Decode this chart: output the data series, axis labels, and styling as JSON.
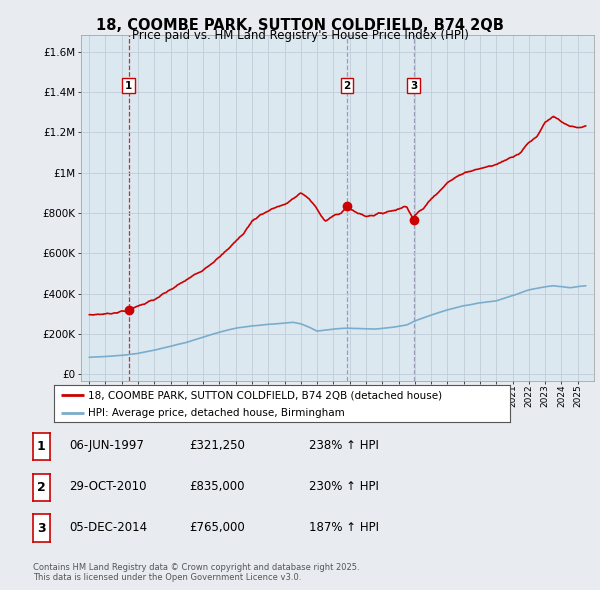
{
  "title_line1": "18, COOMBE PARK, SUTTON COLDFIELD, B74 2QB",
  "title_line2": "Price paid vs. HM Land Registry's House Price Index (HPI)",
  "red_label": "18, COOMBE PARK, SUTTON COLDFIELD, B74 2QB (detached house)",
  "blue_label": "HPI: Average price, detached house, Birmingham",
  "legend_entries": [
    {
      "num": "1",
      "date": "06-JUN-1997",
      "price": "£321,250",
      "change": "238% ↑ HPI"
    },
    {
      "num": "2",
      "date": "29-OCT-2010",
      "price": "£835,000",
      "change": "230% ↑ HPI"
    },
    {
      "num": "3",
      "date": "05-DEC-2014",
      "price": "£765,000",
      "change": "187% ↑ HPI"
    }
  ],
  "footnote": "Contains HM Land Registry data © Crown copyright and database right 2025.\nThis data is licensed under the Open Government Licence v3.0.",
  "yticks": [
    0,
    200000,
    400000,
    600000,
    800000,
    1000000,
    1200000,
    1400000,
    1600000
  ],
  "ytick_labels": [
    "£0",
    "£200K",
    "£400K",
    "£600K",
    "£800K",
    "£1M",
    "£1.2M",
    "£1.4M",
    "£1.6M"
  ],
  "sale_dates_decimal": [
    1997.43,
    2010.83,
    2014.92
  ],
  "sale_prices": [
    321250,
    835000,
    765000
  ],
  "sale_labels": [
    "1",
    "2",
    "3"
  ],
  "sale_line_colors": [
    "#cc0000",
    "#8888aa",
    "#8888aa"
  ],
  "sale_line_styles": [
    "--",
    "--",
    "--"
  ],
  "background_color": "#e8ecf0",
  "plot_bg_color": "#dce8f0",
  "red_color": "#cc0000",
  "blue_color": "#7aadcc",
  "grid_color": "#c0ccd8",
  "title_color": "#000000"
}
